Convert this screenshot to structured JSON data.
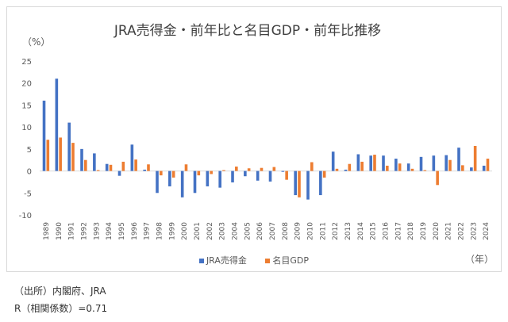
{
  "chart_data": {
    "type": "bar",
    "title": "JRA売得金・前年比と名目GDP・前年比推移",
    "ylabel_unit": "（%）",
    "xlabel_unit": "（年）",
    "ylim": [
      -10,
      25
    ],
    "yticks": [
      25,
      20,
      15,
      10,
      5,
      0,
      -5,
      -10
    ],
    "categories": [
      "1989",
      "1990",
      "1991",
      "1992",
      "1993",
      "1994",
      "1995",
      "1996",
      "1997",
      "1998",
      "1999",
      "2000",
      "2001",
      "2002",
      "2003",
      "2004",
      "2005",
      "2006",
      "2007",
      "2008",
      "2009",
      "2010",
      "2011",
      "2012",
      "2013",
      "2014",
      "2015",
      "2016",
      "2017",
      "2018",
      "2019",
      "2020",
      "2021",
      "2022",
      "2023",
      "2024"
    ],
    "series": [
      {
        "name": "JRA売得金",
        "color": "#4472c4",
        "values": [
          16.0,
          21.0,
          11.0,
          5.0,
          4.0,
          1.6,
          -1.1,
          6.0,
          0.3,
          -5.0,
          -3.5,
          -6.0,
          -5.0,
          -3.5,
          -3.8,
          -2.6,
          -1.2,
          -2.2,
          -2.4,
          -0.2,
          -5.5,
          -6.5,
          -5.5,
          4.4,
          0.3,
          3.8,
          3.5,
          3.5,
          2.8,
          1.7,
          3.2,
          3.5,
          3.6,
          5.3,
          0.8,
          1.2
        ]
      },
      {
        "name": "名目GDP",
        "color": "#ed7d31",
        "values": [
          7.1,
          7.6,
          6.4,
          2.5,
          0.2,
          1.4,
          2.1,
          2.6,
          1.5,
          -1.0,
          -1.5,
          1.5,
          -1.0,
          -0.7,
          0.2,
          1.0,
          0.6,
          0.7,
          0.9,
          -2.0,
          -6.0,
          2.0,
          -1.5,
          0.5,
          1.6,
          2.1,
          3.7,
          1.2,
          1.7,
          0.5,
          0.2,
          -3.2,
          2.5,
          1.3,
          5.7,
          2.8
        ]
      }
    ]
  },
  "footer": {
    "source": "（出所）内閣府、JRA",
    "correlation": "R（相関係数）=0.71"
  }
}
